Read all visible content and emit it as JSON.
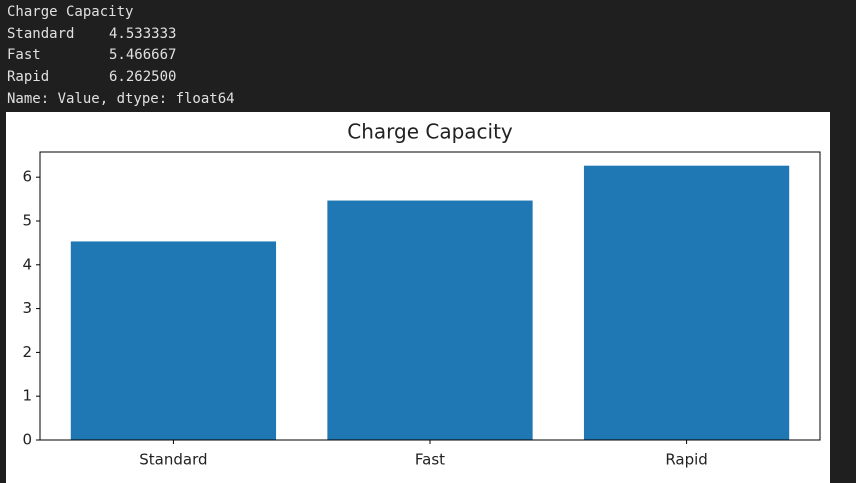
{
  "output": {
    "header": "Charge Capacity",
    "rows": [
      [
        "Standard",
        "4.533333"
      ],
      [
        "Fast",
        "5.466667"
      ],
      [
        "Rapid",
        "6.262500"
      ]
    ],
    "footer": "Name: Value, dtype: float64"
  },
  "chart_data": {
    "type": "bar",
    "title": "Charge Capacity",
    "categories": [
      "Standard",
      "Fast",
      "Rapid"
    ],
    "values": [
      4.533333,
      5.466667,
      6.2625
    ],
    "color": "#1f77b4",
    "ylim": [
      0,
      6.575
    ],
    "yticks": [
      0,
      1,
      2,
      3,
      4,
      5,
      6
    ],
    "grid": false
  }
}
